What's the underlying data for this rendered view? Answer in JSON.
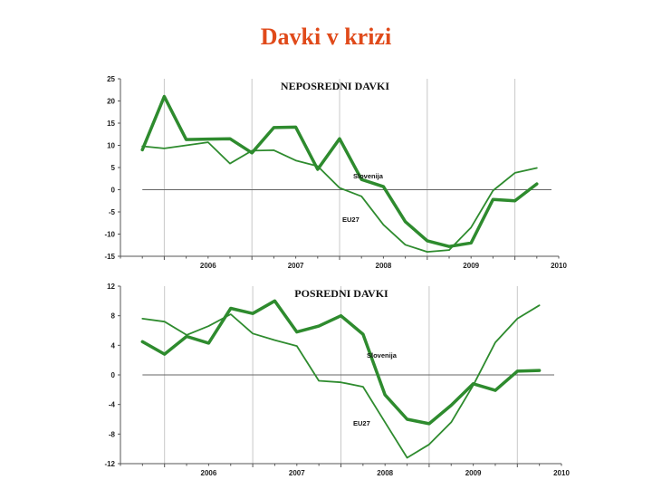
{
  "page": {
    "title": "Davki v krizi"
  },
  "colors": {
    "title": "#e04a1a",
    "series": "#2e8b2e",
    "grid": "#c8c8c8"
  },
  "chart_data": [
    {
      "type": "line",
      "title": "NEPOSREDNI DAVKI",
      "ylim": [
        -15,
        25
      ],
      "y_ticks": [
        25,
        20,
        15,
        10,
        5,
        0,
        -5,
        -10,
        -15
      ],
      "x_ticks": [
        "2006",
        "2007",
        "2008",
        "2009",
        "2010"
      ],
      "x_range": [
        2005.5,
        2010.5
      ],
      "grid": true,
      "series": [
        {
          "name": "Slovenija",
          "width": 3.5,
          "x": [
            2005.75,
            2006.0,
            2006.25,
            2006.5,
            2006.75,
            2007.0,
            2007.25,
            2007.5,
            2007.75,
            2008.0,
            2008.25,
            2008.5,
            2008.75,
            2009.0,
            2009.25,
            2009.5,
            2009.75,
            2010.0,
            2010.25
          ],
          "y": [
            9,
            21,
            11.3,
            11.4,
            11.5,
            8.3,
            14,
            14.1,
            4.6,
            11.5,
            2.3,
            0.7,
            -7.2,
            -11.5,
            -12.8,
            -12,
            -2.2,
            -2.5,
            1.3
          ]
        },
        {
          "name": "EU27",
          "width": 1.8,
          "x": [
            2005.75,
            2006.0,
            2006.25,
            2006.5,
            2006.75,
            2007.0,
            2007.25,
            2007.5,
            2007.75,
            2008.0,
            2008.25,
            2008.5,
            2008.75,
            2009.0,
            2009.25,
            2009.5,
            2009.75,
            2010.0,
            2010.25
          ],
          "y": [
            9.8,
            9.3,
            10,
            10.7,
            5.9,
            8.8,
            8.9,
            6.6,
            5.3,
            0.4,
            -1.5,
            -7.9,
            -12.4,
            -14,
            -13.6,
            -8.5,
            -0.2,
            3.8,
            4.9
          ]
        }
      ],
      "annotations": [
        "Slovenija",
        "EU27"
      ]
    },
    {
      "type": "line",
      "title": "POSREDNI DAVKI",
      "ylim": [
        -12,
        12
      ],
      "y_ticks": [
        12,
        8,
        4,
        0,
        -4,
        -8,
        -12
      ],
      "x_ticks": [
        "2006",
        "2007",
        "2008",
        "2009",
        "2010"
      ],
      "x_range": [
        2005.5,
        2010.5
      ],
      "grid": true,
      "series": [
        {
          "name": "Slovenija",
          "width": 3.5,
          "x": [
            2005.75,
            2006.0,
            2006.25,
            2006.5,
            2006.75,
            2007.0,
            2007.25,
            2007.5,
            2007.75,
            2008.0,
            2008.25,
            2008.5,
            2008.75,
            2009.0,
            2009.25,
            2009.5,
            2009.75,
            2010.0,
            2010.25
          ],
          "y": [
            4.5,
            2.8,
            5.2,
            4.3,
            9,
            8.3,
            10,
            5.8,
            6.6,
            8,
            5.5,
            -2.7,
            -6,
            -6.6,
            -4.1,
            -1.2,
            -2.1,
            0.5,
            0.6
          ]
        },
        {
          "name": "EU27",
          "width": 1.8,
          "x": [
            2005.75,
            2006.0,
            2006.25,
            2006.5,
            2006.75,
            2007.0,
            2007.25,
            2007.5,
            2007.75,
            2008.0,
            2008.25,
            2008.5,
            2008.75,
            2009.0,
            2009.25,
            2009.5,
            2009.75,
            2010.0,
            2010.25
          ],
          "y": [
            7.6,
            7.2,
            5.4,
            6.6,
            8.2,
            5.6,
            4.7,
            3.9,
            -0.8,
            -1,
            -1.6,
            -6.4,
            -11.2,
            -9.4,
            -6.4,
            -1.4,
            4.4,
            7.6,
            9.4
          ]
        }
      ],
      "annotations": [
        "Slovenija",
        "EU27"
      ]
    }
  ]
}
